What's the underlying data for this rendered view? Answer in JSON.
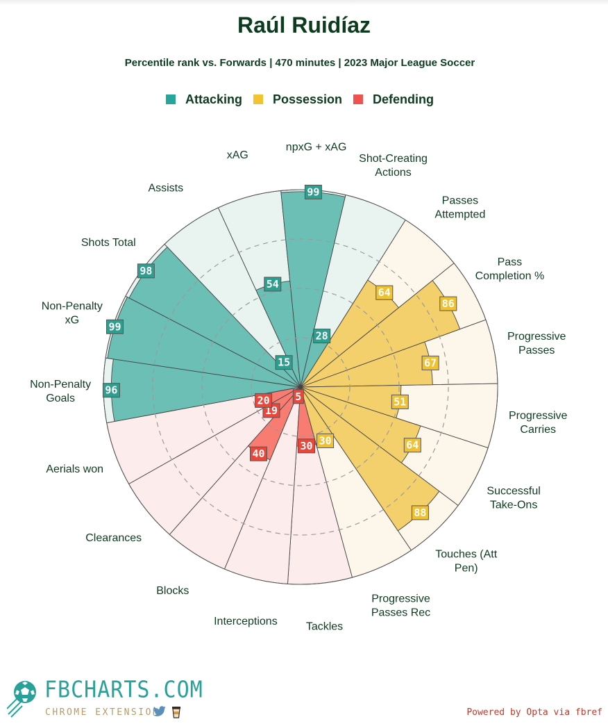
{
  "title": "Raúl Ruidíaz",
  "subtitle": "Percentile rank vs. Forwards | 470 minutes | 2023 Major League Soccer",
  "legend": [
    {
      "label": "Attacking",
      "color": "#26a69a"
    },
    {
      "label": "Possession",
      "color": "#f4c430"
    },
    {
      "label": "Defending",
      "color": "#ef5350"
    }
  ],
  "colors": {
    "text": "#0d3b1e",
    "attacking_fill": "#6cbfb5",
    "attacking_bg": "#e9f4f1",
    "attacking_badge": "#2e9e8f",
    "possession_fill": "#f3d06b",
    "possession_bg": "#fdf6ea",
    "possession_badge": "#f0c232",
    "defending_fill": "#f87c72",
    "defending_bg": "#fdecec",
    "defending_badge": "#e9473b"
  },
  "chart_data": {
    "type": "polar-bar",
    "scale": [
      0,
      100
    ],
    "grid": "dashed rings at 25, 50, 75",
    "metrics": [
      {
        "label": "npxG + xAG",
        "value": 99,
        "group": "Attacking"
      },
      {
        "label": "Shot-Creating\nActions",
        "value": 28,
        "group": "Attacking"
      },
      {
        "label": "Passes\nAttempted",
        "value": 64,
        "group": "Possession"
      },
      {
        "label": "Pass\nCompletion %",
        "value": 86,
        "group": "Possession"
      },
      {
        "label": "Progressive\nPasses",
        "value": 67,
        "group": "Possession"
      },
      {
        "label": "Progressive\nCarries",
        "value": 51,
        "group": "Possession"
      },
      {
        "label": "Successful\nTake-Ons",
        "value": 64,
        "group": "Possession"
      },
      {
        "label": "Touches (Att\nPen)",
        "value": 88,
        "group": "Possession"
      },
      {
        "label": "Progressive\nPasses Rec",
        "value": 30,
        "group": "Possession"
      },
      {
        "label": "Tackles",
        "value": 30,
        "group": "Defending"
      },
      {
        "label": "Interceptions",
        "value": 5,
        "group": "Defending"
      },
      {
        "label": "Blocks",
        "value": 40,
        "group": "Defending"
      },
      {
        "label": "Clearances",
        "value": 19,
        "group": "Defending"
      },
      {
        "label": "Aerials won",
        "value": 20,
        "group": "Defending"
      },
      {
        "label": "Non-Penalty\nGoals",
        "value": 96,
        "group": "Attacking"
      },
      {
        "label": "Non-Penalty\nxG",
        "value": 99,
        "group": "Attacking"
      },
      {
        "label": "Shots Total",
        "value": 98,
        "group": "Attacking"
      },
      {
        "label": "Assists",
        "value": 15,
        "group": "Attacking"
      },
      {
        "label": "xAG",
        "value": 54,
        "group": "Attacking"
      }
    ]
  },
  "logo": {
    "text": "FBCHARTS.COM",
    "sub": "CHROME EXTENSION",
    "twitter_icon": "twitter-icon",
    "coffee_icon": "coffee-icon"
  },
  "credit": "Powered by Opta via fbref"
}
